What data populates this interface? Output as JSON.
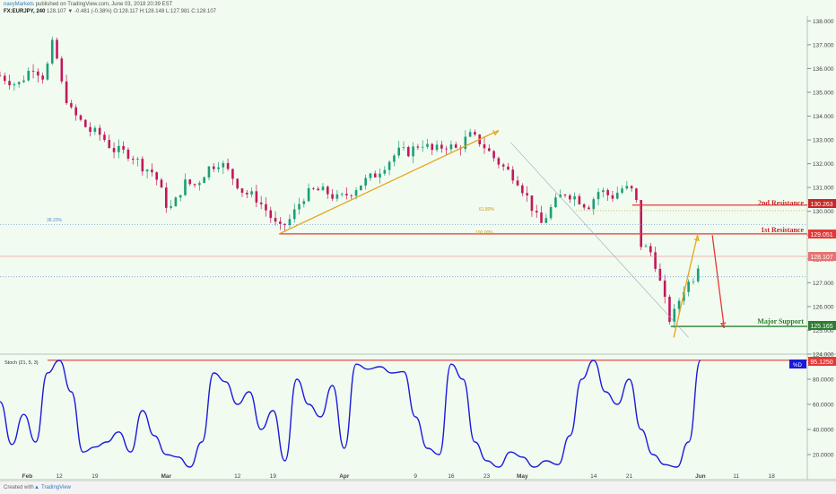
{
  "header": {
    "publisher": "navyMarkets",
    "published_text": "published on TradingView.com, June 03, 2018 20:39 EST",
    "symbol": "FX:EURJPY, 240",
    "quote": "128.107 ▼ -0.481 (-0.38%) O:128.117 H:128.148 L:127.981 C:128.107"
  },
  "footer": {
    "created_with": "Created with",
    "brand": "TradingView"
  },
  "annotations": {
    "second_resistance": "2nd Resistance",
    "first_resistance": "1st Resistance",
    "major_support": "Major Support",
    "fib_382": "38.20%",
    "fib_618": "61.80%",
    "fib_100": "100.00%"
  },
  "price_badges": {
    "second_resistance": "130.263",
    "first_resistance": "129.051",
    "last_price": "128.107",
    "major_support": "125.165"
  },
  "stoch": {
    "label": "Stoch (21, 5, 3)",
    "badge_label": "%D",
    "badge_value": "95.1250"
  },
  "colors": {
    "background": "#f1fbf0",
    "candle_up": "#1b9e77",
    "candle_down": "#c2185b",
    "resistance_line": "#e53935",
    "second_resistance_badge": "#c62828",
    "support_line": "#2e7d32",
    "arrow_orange": "#e8a317",
    "arrow_red": "#e53935",
    "stoch_line": "#1a1adb",
    "last_price_badge": "#e57373"
  },
  "chart_data": [
    {
      "type": "candlestick",
      "symbol": "EURJPY",
      "timeframe": "240",
      "y_ticks": [
        124.0,
        125.0,
        126.0,
        127.0,
        128.0,
        129.0,
        130.0,
        131.0,
        132.0,
        133.0,
        134.0,
        135.0,
        136.0,
        137.0,
        138.0
      ],
      "ylim": [
        124.0,
        138.2
      ],
      "x_ticks": [
        "Feb",
        "12",
        "19",
        "Mar",
        "12",
        "19",
        "Apr",
        "9",
        "16",
        "23",
        "May",
        "14",
        "21",
        "Jun",
        "11",
        "18"
      ],
      "x_tick_positions": [
        0.6,
        6,
        12,
        24,
        36,
        42,
        54,
        66,
        72,
        78,
        84,
        96,
        102,
        114,
        120,
        126
      ],
      "x_range": [
        -4,
        132
      ],
      "price_path_anchors": [
        {
          "x": -4,
          "y": 135.7
        },
        {
          "x": -1,
          "y": 135.3
        },
        {
          "x": 1.5,
          "y": 136.1
        },
        {
          "x": 3.5,
          "y": 135.6
        },
        {
          "x": 5,
          "y": 137.2
        },
        {
          "x": 6.5,
          "y": 135.2
        },
        {
          "x": 8,
          "y": 134.2
        },
        {
          "x": 11,
          "y": 133.4
        },
        {
          "x": 13,
          "y": 133.2
        },
        {
          "x": 15,
          "y": 132.6
        },
        {
          "x": 18,
          "y": 132.4
        },
        {
          "x": 20,
          "y": 131.9
        },
        {
          "x": 22,
          "y": 131.6
        },
        {
          "x": 24,
          "y": 130.3
        },
        {
          "x": 25,
          "y": 130.1
        },
        {
          "x": 27,
          "y": 131.2
        },
        {
          "x": 29,
          "y": 131.1
        },
        {
          "x": 31,
          "y": 131.8
        },
        {
          "x": 33,
          "y": 132.1
        },
        {
          "x": 35,
          "y": 131.5
        },
        {
          "x": 37,
          "y": 130.8
        },
        {
          "x": 39,
          "y": 130.6
        },
        {
          "x": 41,
          "y": 130.0
        },
        {
          "x": 43,
          "y": 129.2
        },
        {
          "x": 45,
          "y": 129.7
        },
        {
          "x": 47,
          "y": 130.6
        },
        {
          "x": 49,
          "y": 130.9
        },
        {
          "x": 51,
          "y": 130.8
        },
        {
          "x": 53,
          "y": 130.5
        },
        {
          "x": 55,
          "y": 130.8
        },
        {
          "x": 57,
          "y": 131.2
        },
        {
          "x": 59,
          "y": 131.5
        },
        {
          "x": 61,
          "y": 132.0
        },
        {
          "x": 63,
          "y": 132.5
        },
        {
          "x": 65,
          "y": 132.5
        },
        {
          "x": 67,
          "y": 132.9
        },
        {
          "x": 69,
          "y": 132.5
        },
        {
          "x": 71,
          "y": 132.8
        },
        {
          "x": 73,
          "y": 132.6
        },
        {
          "x": 75,
          "y": 133.2
        },
        {
          "x": 77,
          "y": 132.9
        },
        {
          "x": 79,
          "y": 132.3
        },
        {
          "x": 81,
          "y": 131.8
        },
        {
          "x": 83,
          "y": 131.4
        },
        {
          "x": 85,
          "y": 130.5
        },
        {
          "x": 87,
          "y": 129.4
        },
        {
          "x": 89,
          "y": 130.2
        },
        {
          "x": 91,
          "y": 130.8
        },
        {
          "x": 93,
          "y": 130.6
        },
        {
          "x": 95,
          "y": 130.2
        },
        {
          "x": 97,
          "y": 130.9
        },
        {
          "x": 99,
          "y": 130.6
        },
        {
          "x": 101,
          "y": 131.0
        },
        {
          "x": 103,
          "y": 130.8
        },
        {
          "x": 104,
          "y": 128.6
        },
        {
          "x": 106,
          "y": 128.2
        },
        {
          "x": 108,
          "y": 126.2
        },
        {
          "x": 109,
          "y": 125.3
        },
        {
          "x": 111,
          "y": 126.7
        },
        {
          "x": 113,
          "y": 127.3
        },
        {
          "x": 114,
          "y": 128.1
        }
      ],
      "levels": {
        "second_resistance": 130.263,
        "first_resistance": 129.051,
        "last_price": 128.107,
        "major_support": 125.165,
        "fib_382": 129.45,
        "fib_618": 130.03,
        "dotted_reference": 127.25
      },
      "trendlines": [
        {
          "name": "uptrend-arrow",
          "from": {
            "x": 43,
            "y": 129.05
          },
          "to": {
            "x": 80,
            "y": 133.4
          }
        },
        {
          "name": "rebound-arrow",
          "from": {
            "x": 109.5,
            "y": 124.7
          },
          "to": {
            "x": 113.5,
            "y": 129.0
          }
        },
        {
          "name": "drop-arrow",
          "from": {
            "x": 116,
            "y": 129.0
          },
          "to": {
            "x": 118,
            "y": 125.1
          }
        },
        {
          "name": "down-diagonal",
          "from": {
            "x": 82,
            "y": 132.9
          },
          "to": {
            "x": 112,
            "y": 124.7
          }
        }
      ]
    },
    {
      "type": "line",
      "name": "%D",
      "indicator": "Stoch (21, 5, 3)",
      "y_ticks": [
        20.0,
        40.0,
        60.0,
        80.0
      ],
      "ylim": [
        0,
        100
      ],
      "overbought_level": 95.125,
      "x": [
        -4,
        -2,
        0,
        2,
        4,
        6,
        8,
        10,
        12,
        14,
        16,
        18,
        20,
        22,
        24,
        26,
        28,
        30,
        32,
        34,
        36,
        38,
        40,
        42,
        44,
        46,
        48,
        50,
        52,
        54,
        56,
        58,
        60,
        62,
        64,
        66,
        68,
        70,
        72,
        74,
        76,
        78,
        80,
        82,
        84,
        86,
        88,
        90,
        92,
        94,
        96,
        98,
        100,
        102,
        104,
        106,
        108,
        110,
        112,
        114
      ],
      "values": [
        62,
        28,
        52,
        30,
        85,
        95,
        70,
        22,
        26,
        30,
        38,
        22,
        55,
        35,
        20,
        18,
        10,
        30,
        85,
        78,
        60,
        70,
        40,
        55,
        15,
        80,
        60,
        50,
        75,
        25,
        92,
        88,
        90,
        85,
        86,
        50,
        25,
        20,
        92,
        80,
        30,
        15,
        10,
        22,
        18,
        10,
        15,
        12,
        35,
        80,
        95,
        70,
        60,
        80,
        40,
        20,
        12,
        10,
        30,
        95
      ]
    }
  ]
}
